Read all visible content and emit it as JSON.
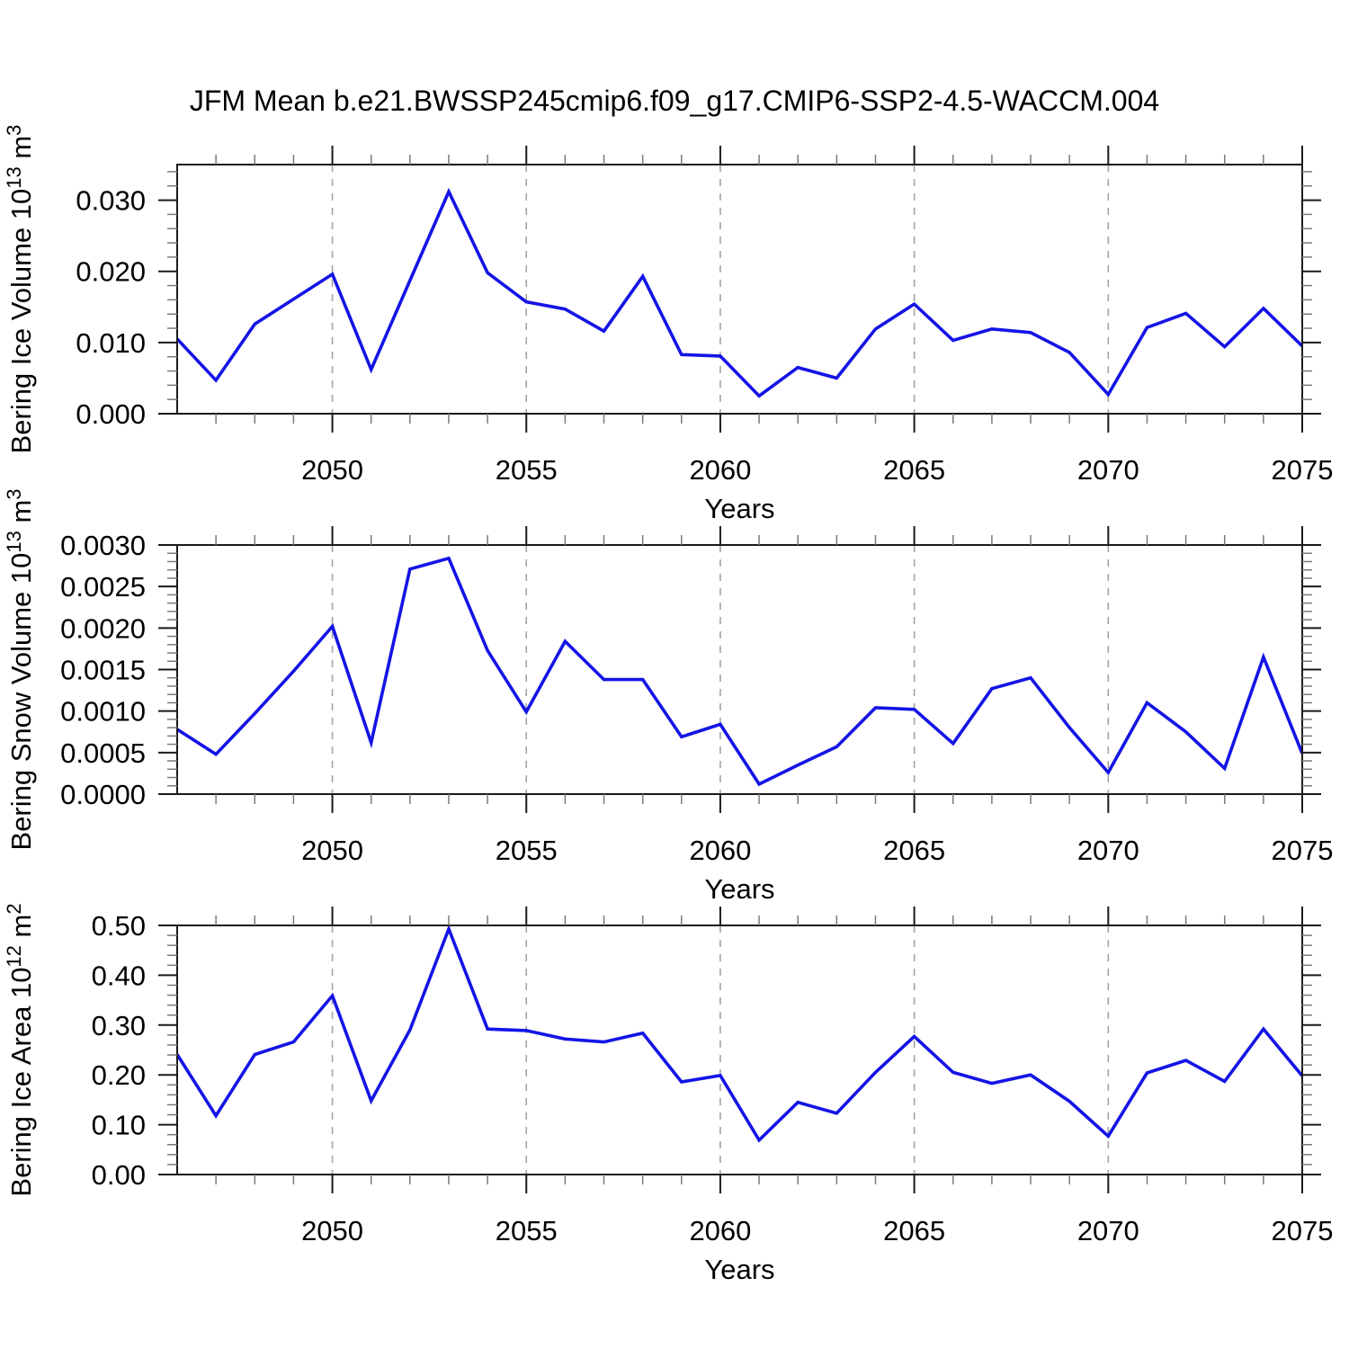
{
  "title": "JFM Mean b.e21.BWSSP245cmip6.f09_g17.CMIP6-SSP2-4.5-WACCM.004",
  "colors": {
    "line": "#1414e6",
    "grid": "#a3a3a3",
    "axis": "#1a1a1a",
    "major_tick": "#1a1a1a",
    "minor_tick": "#7a7a7a",
    "background": "#ffffff",
    "text": "#000000"
  },
  "x_axis": {
    "label": "Years",
    "range": [
      2046,
      2075
    ],
    "tick_values": [
      2050,
      2055,
      2060,
      2065,
      2070,
      2075
    ],
    "tick_labels": [
      "2050",
      "2055",
      "2060",
      "2065",
      "2070",
      "2075"
    ],
    "minor_step": 1,
    "grid_values": [
      2050,
      2055,
      2060,
      2065,
      2070
    ]
  },
  "chart_data": [
    {
      "type": "line",
      "panel": "bering-ice-volume",
      "ylabel_plain": "Bering Ice Volume 10^13 m^3",
      "ylabel_parts": [
        {
          "t": "Bering Ice Volume 10"
        },
        {
          "sup": "13"
        },
        {
          "t": " m"
        },
        {
          "sup": "3"
        }
      ],
      "xlabel": "Years",
      "ylim": [
        0,
        0.035
      ],
      "ytick_values": [
        0.0,
        0.01,
        0.02,
        0.03
      ],
      "ytick_labels": [
        "0.000",
        "0.010",
        "0.020",
        "0.030"
      ],
      "y_minor_step": 0.002,
      "x": [
        2046,
        2047,
        2048,
        2049,
        2050,
        2051,
        2052,
        2053,
        2054,
        2055,
        2056,
        2057,
        2058,
        2059,
        2060,
        2061,
        2062,
        2063,
        2064,
        2065,
        2066,
        2067,
        2068,
        2069,
        2070,
        2071,
        2072,
        2073,
        2074,
        2075
      ],
      "values": [
        0.0105,
        0.0047,
        0.0126,
        0.0161,
        0.0196,
        0.0062,
        0.0187,
        0.0312,
        0.0198,
        0.0157,
        0.0147,
        0.0116,
        0.0193,
        0.0083,
        0.0081,
        0.0025,
        0.0065,
        0.005,
        0.0119,
        0.0154,
        0.0103,
        0.0119,
        0.0114,
        0.0086,
        0.0027,
        0.0121,
        0.0141,
        0.0094,
        0.0148,
        0.0095
      ]
    },
    {
      "type": "line",
      "panel": "bering-snow-volume",
      "ylabel_plain": "Bering Snow Volume 10^13 m^3",
      "ylabel_parts": [
        {
          "t": "Bering Snow Volume 10"
        },
        {
          "sup": "13"
        },
        {
          "t": " m"
        },
        {
          "sup": "3"
        }
      ],
      "xlabel": "Years",
      "ylim": [
        0,
        0.003
      ],
      "ytick_values": [
        0.0,
        0.0005,
        0.001,
        0.0015,
        0.002,
        0.0025,
        0.003
      ],
      "ytick_labels": [
        "0.0000",
        "0.0005",
        "0.0010",
        "0.0015",
        "0.0020",
        "0.0025",
        "0.0030"
      ],
      "y_minor_step": 0.0001,
      "x": [
        2046,
        2047,
        2048,
        2049,
        2050,
        2051,
        2052,
        2053,
        2054,
        2055,
        2056,
        2057,
        2058,
        2059,
        2060,
        2061,
        2062,
        2063,
        2064,
        2065,
        2066,
        2067,
        2068,
        2069,
        2070,
        2071,
        2072,
        2073,
        2074,
        2075
      ],
      "values": [
        0.00078,
        0.00048,
        0.00097,
        0.00148,
        0.00202,
        0.00062,
        0.00271,
        0.00284,
        0.00173,
        0.00099,
        0.00184,
        0.00138,
        0.00138,
        0.00069,
        0.00084,
        0.00012,
        0.00035,
        0.00057,
        0.00104,
        0.00102,
        0.00061,
        0.00127,
        0.0014,
        0.0008,
        0.00026,
        0.0011,
        0.00075,
        0.00031,
        0.00165,
        0.00049
      ]
    },
    {
      "type": "line",
      "panel": "bering-ice-area",
      "ylabel_plain": "Bering Ice Area 10^12 m^2",
      "ylabel_parts": [
        {
          "t": "Bering Ice Area 10"
        },
        {
          "sup": "12"
        },
        {
          "t": " m"
        },
        {
          "sup": "2"
        }
      ],
      "xlabel": "Years",
      "ylim": [
        0,
        0.5
      ],
      "ytick_values": [
        0.0,
        0.1,
        0.2,
        0.3,
        0.4,
        0.5
      ],
      "ytick_labels": [
        "0.00",
        "0.10",
        "0.20",
        "0.30",
        "0.40",
        "0.50"
      ],
      "y_minor_step": 0.02,
      "x": [
        2046,
        2047,
        2048,
        2049,
        2050,
        2051,
        2052,
        2053,
        2054,
        2055,
        2056,
        2057,
        2058,
        2059,
        2060,
        2061,
        2062,
        2063,
        2064,
        2065,
        2066,
        2067,
        2068,
        2069,
        2070,
        2071,
        2072,
        2073,
        2074,
        2075
      ],
      "values": [
        0.241,
        0.118,
        0.241,
        0.266,
        0.359,
        0.148,
        0.29,
        0.493,
        0.292,
        0.289,
        0.272,
        0.266,
        0.284,
        0.186,
        0.199,
        0.069,
        0.145,
        0.123,
        0.205,
        0.277,
        0.205,
        0.183,
        0.2,
        0.147,
        0.077,
        0.204,
        0.229,
        0.187,
        0.292,
        0.198
      ]
    }
  ]
}
